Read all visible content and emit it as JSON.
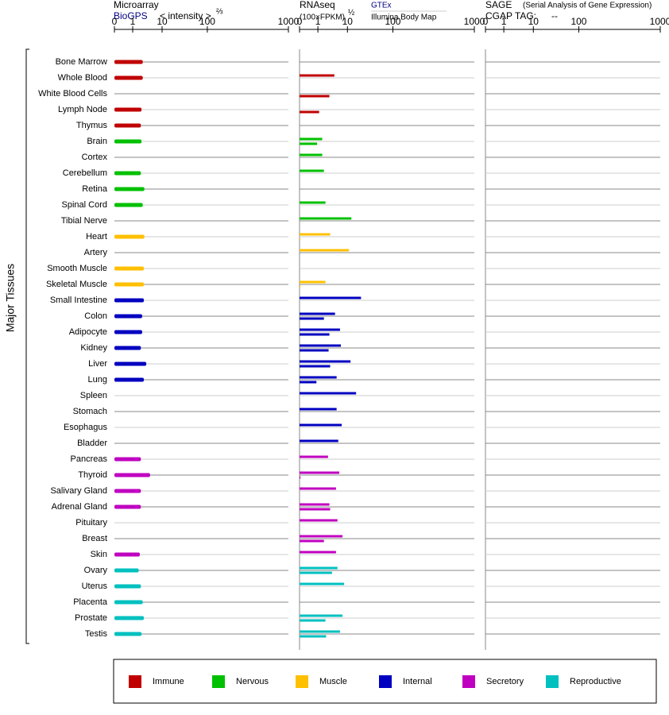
{
  "y_label": "Major Tissues",
  "groups": [
    {
      "name": "Immune",
      "color": "#c00000",
      "tissues": [
        "Bone Marrow",
        "Whole Blood",
        "White Blood Cells",
        "Lymph Node",
        "Thymus"
      ]
    },
    {
      "name": "Nervous",
      "color": "#00c000",
      "tissues": [
        "Brain",
        "Cortex",
        "Cerebellum",
        "Retina",
        "Spinal Cord",
        "Tibial Nerve"
      ]
    },
    {
      "name": "Muscle",
      "color": "#ffc000",
      "tissues": [
        "Heart",
        "Artery",
        "Smooth Muscle",
        "Skeletal Muscle"
      ]
    },
    {
      "name": "Internal",
      "color": "#0000c0",
      "tissues": [
        "Small Intestine",
        "Colon",
        "Adipocyte",
        "Kidney",
        "Liver",
        "Lung",
        "Spleen",
        "Stomach",
        "Esophagus",
        "Bladder"
      ]
    },
    {
      "name": "Secretory",
      "color": "#c000c0",
      "tissues": [
        "Pancreas",
        "Thyroid",
        "Salivary Gland",
        "Adrenal Gland",
        "Pituitary",
        "Breast",
        "Skin"
      ]
    },
    {
      "name": "Reproductive",
      "color": "#00c0c0",
      "tissues": [
        "Ovary",
        "Uterus",
        "Placenta",
        "Prostate",
        "Testis"
      ]
    }
  ],
  "chart_data": [
    {
      "type": "bar",
      "title": "Microarray",
      "source": "BioGPS",
      "axis_label": "< intensity >",
      "exponent": "⅔",
      "xlim": [
        0,
        1000
      ],
      "xticks": [
        0,
        1,
        10,
        100,
        1000
      ],
      "values": [
        2.2,
        2.2,
        null,
        2.0,
        1.9,
        2.0,
        null,
        1.9,
        2.5,
        2.2,
        null,
        2.5,
        null,
        2.4,
        2.4,
        2.4,
        2.1,
        2.1,
        1.9,
        2.9,
        2.4,
        null,
        null,
        null,
        null,
        1.9,
        3.9,
        1.9,
        1.9,
        null,
        null,
        1.75,
        1.6,
        1.9,
        2.2,
        2.4,
        2.0
      ]
    },
    {
      "type": "bar",
      "title": "RNAseq",
      "axis_label": "(100×FPKM)",
      "exponent": "½",
      "xlim": [
        0,
        1000
      ],
      "xticks": [
        0,
        1,
        10,
        100,
        1000
      ],
      "series": [
        {
          "name": "GTEx",
          "values": [
            null,
            3.6,
            null,
            null,
            null,
            1.4,
            1.4,
            1.6,
            null,
            1.8,
            12.2,
            2.6,
            10.8,
            null,
            1.8,
            19.9,
            3.8,
            5.6,
            6.0,
            11.7,
            4.3,
            15.5,
            4.3,
            6.4,
            4.9,
            2.2,
            5.3,
            4.1,
            2.45,
            4.6,
            6.8,
            4.1,
            4.6,
            7.7,
            null,
            6.8,
            5.6
          ]
        },
        {
          "name": "Illumina Body Map",
          "values": [
            null,
            null,
            2.45,
            1.1,
            null,
            0.96,
            null,
            null,
            null,
            null,
            null,
            0.04,
            null,
            null,
            0.04,
            null,
            1.6,
            2.45,
            2.3,
            2.6,
            0.92,
            null,
            null,
            null,
            null,
            null,
            0.05,
            null,
            2.6,
            null,
            1.6,
            null,
            3.0,
            null,
            null,
            1.8,
            1.9
          ]
        }
      ]
    },
    {
      "type": "bar",
      "title": "SAGE",
      "subtitle": "(Serial Analysis of Gene Expression)",
      "tag_label": "CGAP TAG:",
      "tag": "--",
      "xlim": [
        0,
        1000
      ],
      "xticks": [
        0,
        1,
        10,
        100,
        1000
      ]
    }
  ]
}
